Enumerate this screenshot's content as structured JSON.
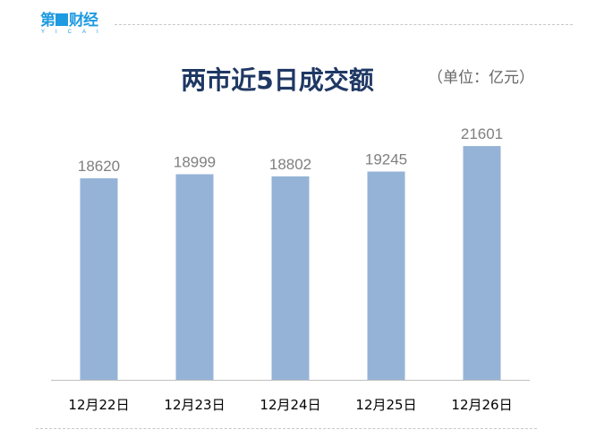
{
  "logo": {
    "text": "第一财经",
    "sub": "YICAI"
  },
  "chart_data": {
    "type": "bar",
    "title": "两市近5日成交额",
    "unit": "（单位：亿元）",
    "categories": [
      "12月22日",
      "12月23日",
      "12月24日",
      "12月25日",
      "12月26日"
    ],
    "values": [
      18620,
      18999,
      18802,
      19245,
      21601
    ],
    "ylim": [
      0,
      25000
    ],
    "grid": false,
    "bar_color": "#95b3d7"
  }
}
